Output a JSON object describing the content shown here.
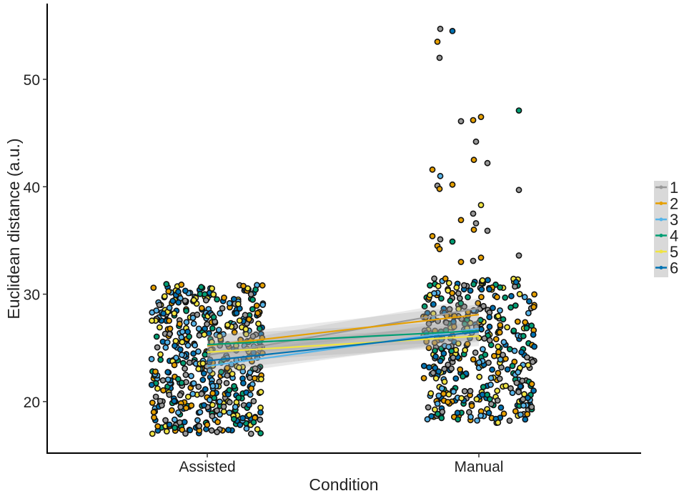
{
  "chart_data": {
    "type": "scatter",
    "xlabel": "Condition",
    "ylabel": "Euclidean distance (a.u.)",
    "categories": [
      "Assisted",
      "Manual"
    ],
    "ylim": [
      15,
      56
    ],
    "yticks": [
      20,
      30,
      40,
      50
    ],
    "grid": false,
    "legend_position": "right",
    "colors": {
      "1": "#999999",
      "2": "#E69F00",
      "3": "#56B4E9",
      "4": "#009E73",
      "5": "#F0E442",
      "6": "#0072B2"
    },
    "series": [
      {
        "name": "1",
        "values": [
          24.3,
          28.7
        ]
      },
      {
        "name": "2",
        "values": [
          25.2,
          28.1
        ]
      },
      {
        "name": "3",
        "values": [
          23.3,
          26.8
        ]
      },
      {
        "name": "4",
        "values": [
          25.3,
          26.6
        ]
      },
      {
        "name": "5",
        "values": [
          24.6,
          26.1
        ]
      },
      {
        "name": "6",
        "values": [
          23.8,
          26.5
        ]
      }
    ],
    "points": {
      "Assisted": {
        "count": 520,
        "range": [
          17,
          31
        ]
      },
      "Manual": {
        "count": 420,
        "range": [
          18,
          31.5
        ]
      }
    },
    "outliers": [
      {
        "x": "Manual",
        "y": 54.7,
        "series": "1"
      },
      {
        "x": "Manual",
        "y": 54.5,
        "series": "6"
      },
      {
        "x": "Manual",
        "y": 53.5,
        "series": "2"
      },
      {
        "x": "Manual",
        "y": 52.0,
        "series": "1"
      },
      {
        "x": "Manual",
        "y": 47.1,
        "series": "4"
      },
      {
        "x": "Manual",
        "y": 46.5,
        "series": "2"
      },
      {
        "x": "Manual",
        "y": 46.2,
        "series": "2"
      },
      {
        "x": "Manual",
        "y": 46.1,
        "series": "1"
      },
      {
        "x": "Manual",
        "y": 44.2,
        "series": "1"
      },
      {
        "x": "Manual",
        "y": 42.5,
        "series": "2"
      },
      {
        "x": "Manual",
        "y": 42.2,
        "series": "1"
      },
      {
        "x": "Manual",
        "y": 41.6,
        "series": "2"
      },
      {
        "x": "Manual",
        "y": 41.0,
        "series": "3"
      },
      {
        "x": "Manual",
        "y": 40.2,
        "series": "2"
      },
      {
        "x": "Manual",
        "y": 40.1,
        "series": "1"
      },
      {
        "x": "Manual",
        "y": 39.8,
        "series": "2"
      },
      {
        "x": "Manual",
        "y": 39.7,
        "series": "1"
      },
      {
        "x": "Manual",
        "y": 38.3,
        "series": "5"
      },
      {
        "x": "Manual",
        "y": 37.5,
        "series": "1"
      },
      {
        "x": "Manual",
        "y": 36.9,
        "series": "2"
      },
      {
        "x": "Manual",
        "y": 36.6,
        "series": "1"
      },
      {
        "x": "Manual",
        "y": 36.0,
        "series": "2"
      },
      {
        "x": "Manual",
        "y": 35.9,
        "series": "1"
      },
      {
        "x": "Manual",
        "y": 35.4,
        "series": "2"
      },
      {
        "x": "Manual",
        "y": 35.1,
        "series": "1"
      },
      {
        "x": "Manual",
        "y": 34.9,
        "series": "4"
      },
      {
        "x": "Manual",
        "y": 34.5,
        "series": "2"
      },
      {
        "x": "Manual",
        "y": 34.2,
        "series": "2"
      },
      {
        "x": "Manual",
        "y": 33.6,
        "series": "1"
      },
      {
        "x": "Manual",
        "y": 33.4,
        "series": "2"
      },
      {
        "x": "Manual",
        "y": 33.1,
        "series": "1"
      },
      {
        "x": "Manual",
        "y": 33.0,
        "series": "2"
      }
    ]
  }
}
